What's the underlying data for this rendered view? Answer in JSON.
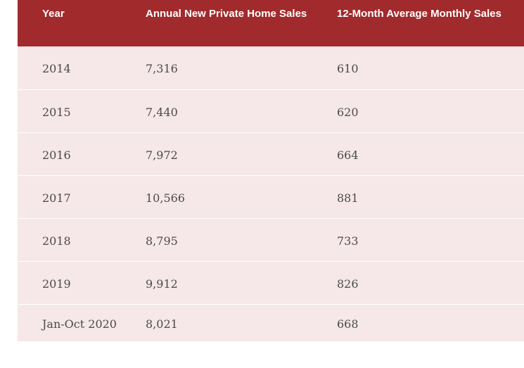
{
  "table": {
    "headers": {
      "year": "Year",
      "annual": "Annual New Private Home Sales",
      "monthly": "12-Month Average Monthly Sales"
    },
    "rows": [
      {
        "year": "2014",
        "annual": "7,316",
        "monthly": "610"
      },
      {
        "year": "2015",
        "annual": "7,440",
        "monthly": "620"
      },
      {
        "year": "2016",
        "annual": "7,972",
        "monthly": "664"
      },
      {
        "year": "2017",
        "annual": "10,566",
        "monthly": "881"
      },
      {
        "year": "2018",
        "annual": "8,795",
        "monthly": "733"
      },
      {
        "year": "2019",
        "annual": "9,912",
        "monthly": "826"
      },
      {
        "year": "Jan-Oct 2020",
        "annual": "8,021",
        "monthly": "668"
      }
    ],
    "colors": {
      "header_bg": "#a12a2c",
      "header_text": "#ffffff",
      "row_bg": "#f6e8e8",
      "row_text": "#4a4a4a"
    }
  }
}
